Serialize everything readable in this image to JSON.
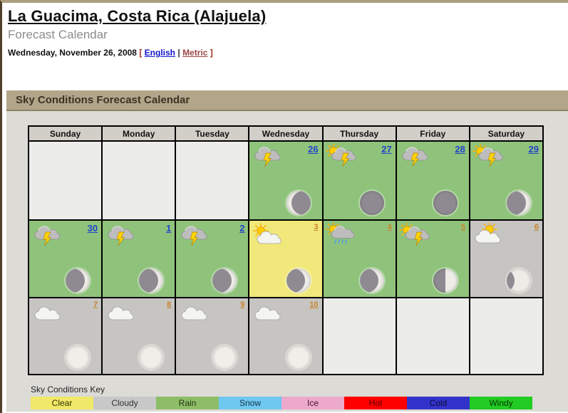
{
  "page": {
    "title": "La Guacima, Costa Rica (Alajuela)",
    "subtitle": "Forecast Calendar",
    "date_line": {
      "date": "Wednesday, November 26, 2008",
      "bracket_open": "[",
      "link_english": "English",
      "separator": "|",
      "link_metric": "Metric",
      "bracket_close": "]"
    }
  },
  "section": {
    "title": "Sky Conditions Forecast Calendar"
  },
  "calendar": {
    "day_headers": [
      "Sunday",
      "Monday",
      "Tuesday",
      "Wednesday",
      "Thursday",
      "Friday",
      "Saturday"
    ],
    "weeks": [
      [
        {
          "type": "empty"
        },
        {
          "type": "empty"
        },
        {
          "type": "empty"
        },
        {
          "type": "day",
          "date": "26",
          "date_color": "blue",
          "condition": "rain",
          "icon": "thunderstorm",
          "moon": "waning-crescent"
        },
        {
          "type": "day",
          "date": "27",
          "date_color": "blue",
          "condition": "rain",
          "icon": "sun-thunderstorm",
          "moon": "new"
        },
        {
          "type": "day",
          "date": "28",
          "date_color": "blue",
          "condition": "rain",
          "icon": "thunderstorm",
          "moon": "new"
        },
        {
          "type": "day",
          "date": "29",
          "date_color": "blue",
          "condition": "rain",
          "icon": "sun-thunderstorm",
          "moon": "waxing-crescent"
        }
      ],
      [
        {
          "type": "day",
          "date": "30",
          "date_color": "blue",
          "condition": "rain",
          "icon": "thunderstorm",
          "moon": "waxing-crescent"
        },
        {
          "type": "day",
          "date": "1",
          "date_color": "blue",
          "condition": "rain",
          "icon": "thunderstorm",
          "moon": "waxing-crescent"
        },
        {
          "type": "day",
          "date": "2",
          "date_color": "blue",
          "condition": "rain",
          "icon": "thunderstorm",
          "moon": "waxing-crescent"
        },
        {
          "type": "day",
          "date": "3",
          "date_color": "orange",
          "condition": "clear",
          "icon": "sun-cloud",
          "moon": "waxing-crescent"
        },
        {
          "type": "day",
          "date": "4",
          "date_color": "orange",
          "condition": "rain",
          "icon": "sun-rain",
          "moon": "waxing-crescent"
        },
        {
          "type": "day",
          "date": "5",
          "date_color": "orange",
          "condition": "rain",
          "icon": "sun-thunderstorm",
          "moon": "first-quarter"
        },
        {
          "type": "day",
          "date": "6",
          "date_color": "orange",
          "condition": "cloudy",
          "icon": "sun-mostly-cloudy",
          "moon": "waxing-gibbous"
        }
      ],
      [
        {
          "type": "day",
          "date": "7",
          "date_color": "orange",
          "condition": "cloudy",
          "icon": "cloud",
          "moon": "bright"
        },
        {
          "type": "day",
          "date": "8",
          "date_color": "orange",
          "condition": "cloudy",
          "icon": "cloud",
          "moon": "bright"
        },
        {
          "type": "day",
          "date": "9",
          "date_color": "orange",
          "condition": "cloudy",
          "icon": "cloud",
          "moon": "bright"
        },
        {
          "type": "day",
          "date": "10",
          "date_color": "orange",
          "condition": "cloudy",
          "icon": "cloud",
          "moon": "bright"
        },
        {
          "type": "empty"
        },
        {
          "type": "empty"
        },
        {
          "type": "empty"
        }
      ]
    ]
  },
  "key": {
    "label": "Sky Conditions Key",
    "items": [
      {
        "label": "Clear",
        "color": "#F0E868",
        "text_color": "#333300"
      },
      {
        "label": "Cloudy",
        "color": "#C8C8C8",
        "text_color": "#333333"
      },
      {
        "label": "Rain",
        "color": "#8EBD68",
        "text_color": "#1F3312"
      },
      {
        "label": "Snow",
        "color": "#6FC8F0",
        "text_color": "#123347"
      },
      {
        "label": "Ice",
        "color": "#EDA9CB",
        "text_color": "#47122E"
      },
      {
        "label": "Hot",
        "color": "#FF0000",
        "text_color": "#5A0000"
      },
      {
        "label": "Cold",
        "color": "#3333CC",
        "text_color": "#0A0A33"
      },
      {
        "label": "Windy",
        "color": "#22CC22",
        "text_color": "#063306"
      }
    ]
  },
  "colors": {
    "condition_bg": {
      "rain": "#8FC37B",
      "clear": "#F0E87A",
      "cloudy": "#C6C5C1",
      "empty": "#ECECEA"
    },
    "date_link": {
      "blue": "#2244CC",
      "orange": "#C8832B"
    }
  }
}
